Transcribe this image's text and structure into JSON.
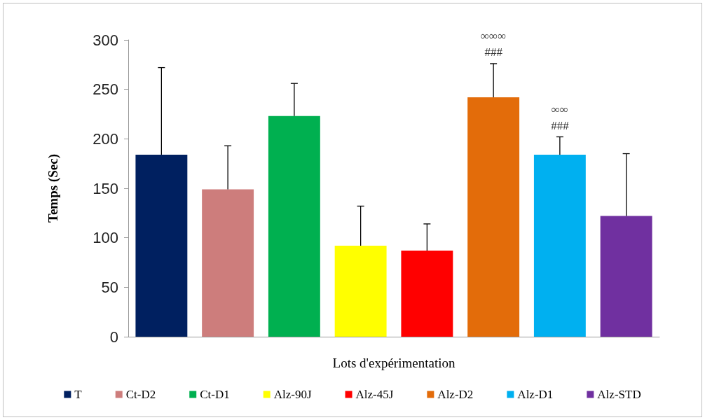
{
  "chart_data": {
    "type": "bar",
    "xlabel": "Lots d'expérimentation",
    "ylabel": "Temps (Sec)",
    "categories": [
      null,
      null,
      null,
      null,
      null,
      null,
      null,
      null
    ],
    "stacked": true,
    "series": [
      {
        "name": "T",
        "color": "#002060",
        "values": [
          184,
          null,
          null,
          null,
          null,
          null,
          null,
          null
        ],
        "errors": [
          [
            184,
            272
          ],
          null,
          null,
          null,
          null,
          null,
          null,
          null
        ]
      },
      {
        "name": "Ct-D2",
        "color": "#cd7d7c",
        "values": [
          null,
          149,
          null,
          null,
          null,
          null,
          null,
          null
        ],
        "errors": [
          null,
          [
            149,
            193
          ],
          null,
          null,
          null,
          null,
          null,
          null
        ]
      },
      {
        "name": "Ct-D1",
        "color": "#00b050",
        "values": [
          null,
          null,
          223,
          null,
          null,
          null,
          null,
          null
        ],
        "errors": [
          null,
          null,
          [
            223,
            256
          ],
          null,
          null,
          null,
          null,
          null
        ]
      },
      {
        "name": "Alz-90J",
        "color": "#ffff00",
        "values": [
          null,
          null,
          null,
          92,
          null,
          null,
          null,
          null
        ],
        "errors": [
          null,
          null,
          null,
          [
            92,
            132
          ],
          null,
          null,
          null,
          null
        ]
      },
      {
        "name": "Alz-45J",
        "color": "#ff0000",
        "values": [
          null,
          null,
          null,
          null,
          87,
          null,
          null,
          null
        ],
        "errors": [
          null,
          null,
          null,
          null,
          [
            87,
            114
          ],
          null,
          null,
          null
        ]
      },
      {
        "name": "Alz-D2",
        "color": "#e36c0a",
        "values": [
          null,
          null,
          null,
          null,
          null,
          242,
          null,
          null
        ],
        "errors": [
          null,
          null,
          null,
          null,
          null,
          [
            242,
            276
          ],
          null,
          null
        ]
      },
      {
        "name": "Alz-D1",
        "color": "#00b0f0",
        "values": [
          null,
          null,
          null,
          null,
          null,
          null,
          184,
          null
        ],
        "errors": [
          null,
          null,
          null,
          null,
          null,
          null,
          [
            184,
            202
          ],
          null
        ]
      },
      {
        "name": "Alz-STD",
        "color": "#7030a0",
        "values": [
          null,
          null,
          null,
          null,
          null,
          null,
          null,
          122
        ],
        "errors": [
          null,
          null,
          null,
          null,
          null,
          null,
          null,
          [
            122,
            185
          ]
        ]
      }
    ],
    "ylim": [
      0,
      300
    ],
    "yticks": [
      0,
      50,
      100,
      150,
      200,
      250,
      300
    ],
    "legend": "bottom",
    "annotations": [
      "###",
      "∞∞∞",
      "###",
      "∞∞"
    ]
  }
}
